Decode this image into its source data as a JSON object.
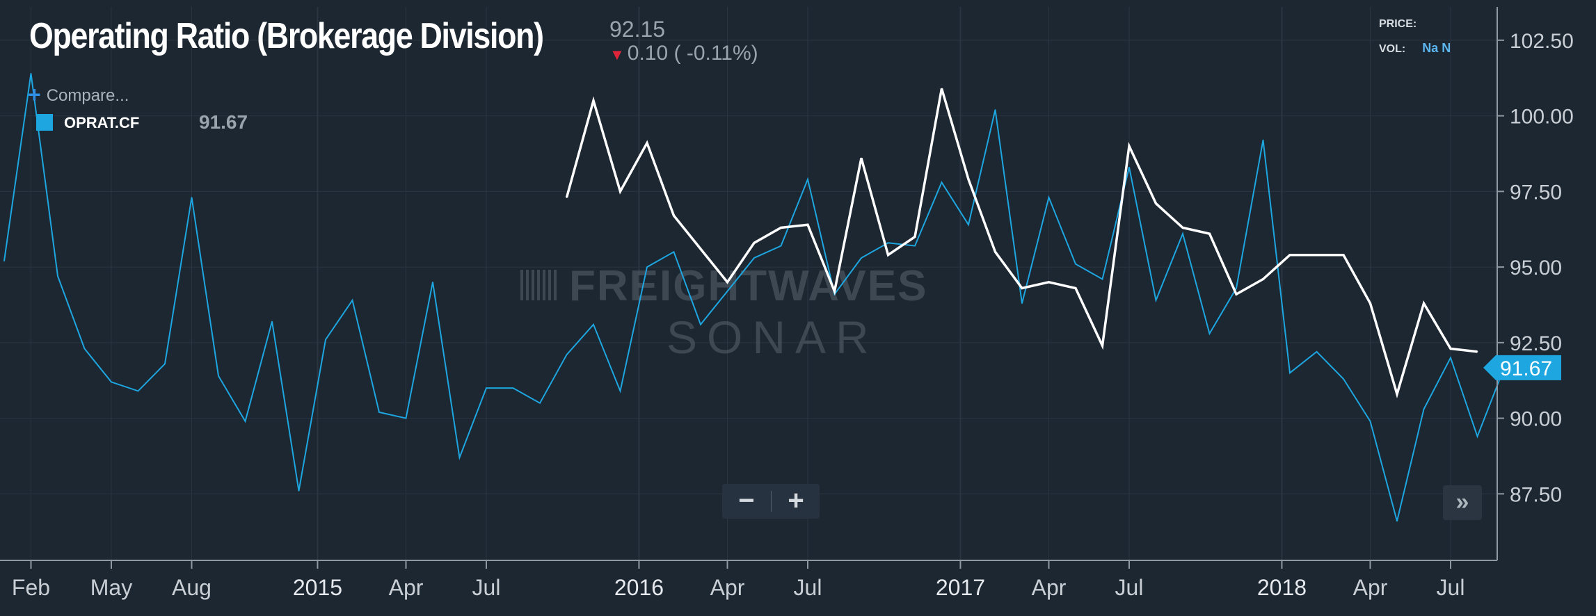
{
  "header": {
    "title": "Operating Ratio (Brokerage Division)",
    "last_price": "92.15",
    "change": "0.10 ( -0.11%)",
    "compare_label": "Compare...",
    "series_symbol": "OPRAT.CF",
    "series_value": "91.67",
    "price_label": "PRICE:",
    "vol_label": "VOL:",
    "vol_value": "Na N"
  },
  "watermark": {
    "brand_text": "FREIGHTWAVES",
    "sub_text": "SONAR"
  },
  "controls": {
    "zoom_out": "−",
    "zoom_in": "+",
    "scroll_right": "»"
  },
  "colors": {
    "background": "#1d2732",
    "grid": "#2a3541",
    "series_blue": "#1da6e0",
    "series_white": "#ffffff",
    "down_arrow": "#e0253a",
    "axis_text": "#c9cfd5"
  },
  "icons": {
    "compare": "plus-icon",
    "change_direction": "down-arrow-icon",
    "scroll": "double-chevron-right-icon"
  },
  "chart_data": {
    "type": "line",
    "title": "Operating Ratio (Brokerage Division)",
    "xlabel": "",
    "ylabel": "",
    "x_ticks": [
      {
        "t": 1,
        "label": "Feb",
        "major": false
      },
      {
        "t": 4,
        "label": "May",
        "major": false
      },
      {
        "t": 7,
        "label": "Aug",
        "major": false
      },
      {
        "t": 11.7,
        "label": "2015",
        "major": true
      },
      {
        "t": 15,
        "label": "Apr",
        "major": false
      },
      {
        "t": 18,
        "label": "Jul",
        "major": false
      },
      {
        "t": 23.7,
        "label": "2016",
        "major": true
      },
      {
        "t": 27,
        "label": "Apr",
        "major": false
      },
      {
        "t": 30,
        "label": "Jul",
        "major": false
      },
      {
        "t": 35.7,
        "label": "2017",
        "major": true
      },
      {
        "t": 39,
        "label": "Apr",
        "major": false
      },
      {
        "t": 42,
        "label": "Jul",
        "major": false
      },
      {
        "t": 47.7,
        "label": "2018",
        "major": true
      },
      {
        "t": 51,
        "label": "Apr",
        "major": false
      },
      {
        "t": 54,
        "label": "Jul",
        "major": false
      }
    ],
    "y_ticks": [
      "87.50",
      "90.00",
      "92.50",
      "95.00",
      "97.50",
      "100.00",
      "102.50"
    ],
    "ylim": [
      85.3,
      103.6
    ],
    "grid": true,
    "last_value_label": "91.67",
    "series": [
      {
        "name": "OPRAT.CF",
        "color": "#1da6e0",
        "points": [
          [
            0,
            95.2
          ],
          [
            1,
            101.4
          ],
          [
            2,
            94.7
          ],
          [
            3,
            92.3
          ],
          [
            4,
            91.2
          ],
          [
            5,
            90.9
          ],
          [
            6,
            91.8
          ],
          [
            7,
            97.3
          ],
          [
            8,
            91.4
          ],
          [
            9,
            89.9
          ],
          [
            10,
            93.2
          ],
          [
            11,
            87.6
          ],
          [
            12,
            92.6
          ],
          [
            13,
            93.9
          ],
          [
            14,
            90.2
          ],
          [
            15,
            90.0
          ],
          [
            16,
            94.5
          ],
          [
            17,
            88.7
          ],
          [
            18,
            91.0
          ],
          [
            19,
            91.0
          ],
          [
            20,
            90.5
          ],
          [
            21,
            92.1
          ],
          [
            22,
            93.1
          ],
          [
            23,
            90.9
          ],
          [
            24,
            95.0
          ],
          [
            25,
            95.5
          ],
          [
            26,
            93.1
          ],
          [
            27,
            94.2
          ],
          [
            28,
            95.3
          ],
          [
            29,
            95.7
          ],
          [
            30,
            97.9
          ],
          [
            31,
            94.1
          ],
          [
            32,
            95.3
          ],
          [
            33,
            95.8
          ],
          [
            34,
            95.7
          ],
          [
            35,
            97.8
          ],
          [
            36,
            96.4
          ],
          [
            37,
            100.2
          ],
          [
            38,
            93.8
          ],
          [
            39,
            97.3
          ],
          [
            40,
            95.1
          ],
          [
            41,
            94.6
          ],
          [
            42,
            98.3
          ],
          [
            43,
            93.9
          ],
          [
            44,
            96.1
          ],
          [
            45,
            92.8
          ],
          [
            46,
            94.3
          ],
          [
            47,
            99.2
          ],
          [
            48,
            91.5
          ],
          [
            49,
            92.2
          ],
          [
            50,
            91.3
          ],
          [
            51,
            89.9
          ],
          [
            52,
            86.6
          ],
          [
            53,
            90.3
          ],
          [
            54,
            92.0
          ],
          [
            55,
            89.4
          ],
          [
            56,
            91.67
          ]
        ]
      },
      {
        "name": "",
        "color": "#ffffff",
        "points": [
          [
            21,
            97.3
          ],
          [
            22,
            100.5
          ],
          [
            23,
            97.5
          ],
          [
            24,
            99.1
          ],
          [
            25,
            96.7
          ],
          [
            26,
            95.6
          ],
          [
            27,
            94.5
          ],
          [
            28,
            95.8
          ],
          [
            29,
            96.3
          ],
          [
            30,
            96.4
          ],
          [
            31,
            94.2
          ],
          [
            32,
            98.6
          ],
          [
            33,
            95.4
          ],
          [
            34,
            96.0
          ],
          [
            35,
            100.9
          ],
          [
            36,
            97.9
          ],
          [
            37,
            95.5
          ],
          [
            38,
            94.3
          ],
          [
            39,
            94.5
          ],
          [
            40,
            94.3
          ],
          [
            41,
            92.4
          ],
          [
            42,
            99.0
          ],
          [
            43,
            97.1
          ],
          [
            44,
            96.3
          ],
          [
            45,
            96.1
          ],
          [
            46,
            94.1
          ],
          [
            47,
            94.6
          ],
          [
            48,
            95.4
          ],
          [
            49,
            95.4
          ],
          [
            50,
            95.4
          ],
          [
            51,
            93.8
          ],
          [
            52,
            90.8
          ],
          [
            53,
            93.8
          ],
          [
            54,
            92.3
          ],
          [
            55,
            92.2
          ]
        ]
      }
    ]
  }
}
